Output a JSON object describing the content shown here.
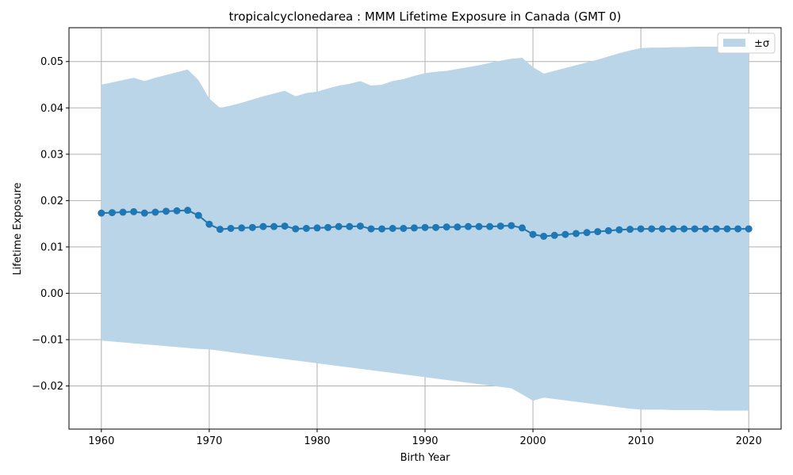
{
  "chart_data": {
    "type": "line",
    "title": "tropicalcyclonedarea : MMM Lifetime Exposure in Canada (GMT 0)",
    "xlabel": "Birth Year",
    "ylabel": "Lifetime Exposure",
    "xlim": [
      1957,
      2023
    ],
    "ylim": [
      -0.0293,
      0.0573
    ],
    "grid": true,
    "legend_position": "top-right",
    "x_ticks": [
      1960,
      1970,
      1980,
      1990,
      2000,
      2010,
      2020
    ],
    "x_tick_labels": [
      "1960",
      "1970",
      "1980",
      "1990",
      "2000",
      "2010",
      "2020"
    ],
    "y_ticks": [
      -0.02,
      -0.01,
      0.0,
      0.01,
      0.02,
      0.03,
      0.04,
      0.05
    ],
    "y_tick_labels": [
      "−0.02",
      "−0.01",
      "0.00",
      "0.01",
      "0.02",
      "0.03",
      "0.04",
      "0.05"
    ],
    "colors": {
      "line": "#1f77b4",
      "band": "#bad4e8",
      "grid": "#b0b0b0"
    },
    "x": [
      1960,
      1961,
      1962,
      1963,
      1964,
      1965,
      1966,
      1967,
      1968,
      1969,
      1970,
      1971,
      1972,
      1973,
      1974,
      1975,
      1976,
      1977,
      1978,
      1979,
      1980,
      1981,
      1982,
      1983,
      1984,
      1985,
      1986,
      1987,
      1988,
      1989,
      1990,
      1991,
      1992,
      1993,
      1994,
      1995,
      1996,
      1997,
      1998,
      1999,
      2000,
      2001,
      2002,
      2003,
      2004,
      2005,
      2006,
      2007,
      2008,
      2009,
      2010,
      2011,
      2012,
      2013,
      2014,
      2015,
      2016,
      2017,
      2018,
      2019,
      2020
    ],
    "series": [
      {
        "name": "",
        "values": [
          0.0173,
          0.0174,
          0.0175,
          0.0176,
          0.0173,
          0.0175,
          0.0177,
          0.0178,
          0.0179,
          0.0168,
          0.0149,
          0.0138,
          0.014,
          0.0141,
          0.0142,
          0.0144,
          0.0144,
          0.0145,
          0.0139,
          0.014,
          0.0141,
          0.0142,
          0.0144,
          0.0144,
          0.0145,
          0.0139,
          0.0139,
          0.014,
          0.014,
          0.0141,
          0.0142,
          0.0142,
          0.0143,
          0.0143,
          0.0144,
          0.0144,
          0.0144,
          0.0145,
          0.0146,
          0.0141,
          0.0127,
          0.0123,
          0.0125,
          0.0127,
          0.0129,
          0.0131,
          0.0133,
          0.0135,
          0.0137,
          0.0138,
          0.0139,
          0.0139,
          0.0139,
          0.0139,
          0.0139,
          0.0139,
          0.0139,
          0.0139,
          0.0139,
          0.0139,
          0.0139
        ]
      }
    ],
    "band": {
      "name": "±σ",
      "upper": [
        0.045,
        0.0455,
        0.046,
        0.0465,
        0.0458,
        0.0465,
        0.0471,
        0.0477,
        0.0483,
        0.046,
        0.042,
        0.04,
        0.0405,
        0.0411,
        0.0418,
        0.0425,
        0.0431,
        0.0437,
        0.0425,
        0.0432,
        0.0435,
        0.0442,
        0.0448,
        0.0452,
        0.0458,
        0.0448,
        0.045,
        0.0458,
        0.0462,
        0.0469,
        0.0475,
        0.0478,
        0.048,
        0.0484,
        0.0488,
        0.0492,
        0.0497,
        0.0502,
        0.0506,
        0.0508,
        0.0488,
        0.0474,
        0.048,
        0.0486,
        0.0492,
        0.0498,
        0.0504,
        0.0511,
        0.0518,
        0.0524,
        0.0529,
        0.053,
        0.053,
        0.0531,
        0.0531,
        0.0532,
        0.0532,
        0.0532,
        0.0533,
        0.0533,
        0.0533
      ],
      "lower": [
        -0.0102,
        -0.0104,
        -0.0106,
        -0.0108,
        -0.011,
        -0.0112,
        -0.0114,
        -0.0116,
        -0.0118,
        -0.012,
        -0.0121,
        -0.0124,
        -0.0127,
        -0.013,
        -0.0133,
        -0.0136,
        -0.0139,
        -0.0142,
        -0.0145,
        -0.0148,
        -0.0151,
        -0.0154,
        -0.0157,
        -0.016,
        -0.0163,
        -0.0166,
        -0.0169,
        -0.0172,
        -0.0175,
        -0.0178,
        -0.0181,
        -0.0184,
        -0.0187,
        -0.019,
        -0.0193,
        -0.0196,
        -0.0199,
        -0.0202,
        -0.0205,
        -0.0218,
        -0.0232,
        -0.0225,
        -0.0228,
        -0.0231,
        -0.0234,
        -0.0237,
        -0.024,
        -0.0243,
        -0.0246,
        -0.0249,
        -0.0251,
        -0.0251,
        -0.0251,
        -0.0252,
        -0.0252,
        -0.0252,
        -0.0252,
        -0.0253,
        -0.0253,
        -0.0253,
        -0.0253
      ]
    }
  }
}
